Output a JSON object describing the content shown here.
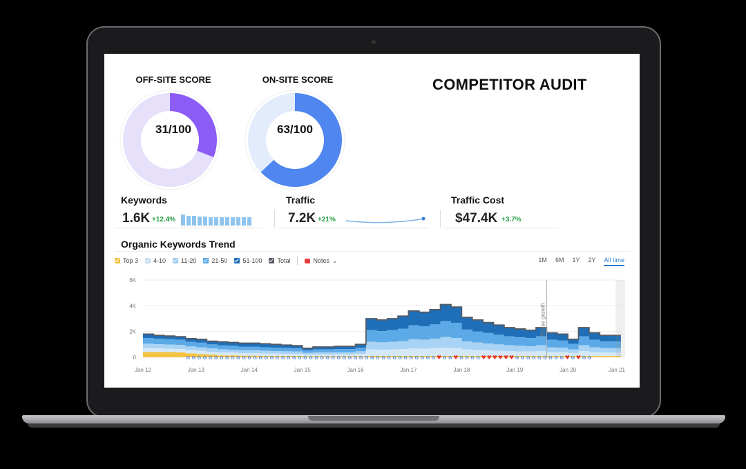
{
  "colors": {
    "offsite_fill": "#8b5cf6",
    "offsite_track": "#e6e0fa",
    "onsite_fill": "#4f86ef",
    "onsite_track": "#e3ecfc",
    "top3": "#f5c342",
    "pos_4_10": "#d4e8f8",
    "pos_11_20": "#a9d3f4",
    "pos_21_50": "#5ba9e6",
    "pos_51_100": "#1f6fb8",
    "total": "#555a64",
    "positive_change": "#1a9a3a"
  },
  "scores": {
    "offsite": {
      "title": "OFF-SITE SCORE",
      "value": "31/100",
      "fraction": 0.31
    },
    "onsite": {
      "title": "ON-SITE SCORE",
      "value": "63/100",
      "fraction": 0.63
    }
  },
  "heading": "COMPETITOR AUDIT",
  "metrics": {
    "keywords": {
      "label": "Keywords",
      "value": "1.6K",
      "change": "+12.4%"
    },
    "traffic": {
      "label": "Traffic",
      "value": "7.2K",
      "change": "+21%"
    },
    "traffic_cost": {
      "label": "Traffic Cost",
      "value": "$47.4K",
      "change": "+3.7%"
    }
  },
  "trend": {
    "title": "Organic Keywords Trend",
    "legend": [
      "Top 3",
      "4-10",
      "11-20",
      "21-50",
      "51-100",
      "Total"
    ],
    "notes_label": "Notes",
    "ranges": [
      "1M",
      "6M",
      "1Y",
      "2Y",
      "All time"
    ],
    "active_range": "All time",
    "annotation": "Phase growth"
  },
  "chart_data": {
    "type": "area",
    "title": "Organic Keywords Trend",
    "y_ticks": [
      "6K",
      "4K",
      "2K",
      "0"
    ],
    "ylim": [
      0,
      6000
    ],
    "x_tick_labels": [
      "Jan 12",
      "Jan 13",
      "Jan 14",
      "Jan 15",
      "Jan 16",
      "Jan 17",
      "Jan 18",
      "Jan 19",
      "Jan 20",
      "Jan 21"
    ],
    "x": [
      12.0,
      12.2,
      12.4,
      12.6,
      12.8,
      13.0,
      13.2,
      13.4,
      13.6,
      13.8,
      14.0,
      14.2,
      14.4,
      14.6,
      14.8,
      15.0,
      15.2,
      15.4,
      15.6,
      15.8,
      16.0,
      16.2,
      16.4,
      16.6,
      16.8,
      17.0,
      17.2,
      17.4,
      17.6,
      17.8,
      18.0,
      18.2,
      18.4,
      18.6,
      18.8,
      19.0,
      19.2,
      19.4,
      19.6,
      19.8,
      20.0,
      20.2,
      20.4,
      20.6,
      20.8,
      21.0
    ],
    "total": [
      1800,
      1700,
      1650,
      1600,
      1450,
      1400,
      1250,
      1200,
      1150,
      1100,
      1100,
      1050,
      1000,
      950,
      900,
      700,
      800,
      800,
      850,
      850,
      1000,
      3000,
      2900,
      3000,
      3200,
      3600,
      3500,
      3700,
      4100,
      3900,
      3100,
      2900,
      2700,
      2500,
      2300,
      2200,
      2100,
      2300,
      1900,
      1800,
      1400,
      2300,
      1900,
      1700,
      1700,
      1700
    ],
    "series": [
      {
        "name": "Top 3",
        "values": [
          400,
          400,
          400,
          380,
          300,
          250,
          200,
          150,
          150,
          120,
          120,
          100,
          100,
          100,
          100,
          80,
          80,
          80,
          80,
          80,
          80,
          100,
          100,
          100,
          100,
          100,
          100,
          100,
          100,
          100,
          100,
          100,
          100,
          100,
          100,
          100,
          100,
          100,
          100,
          100,
          100,
          100,
          100,
          100,
          100,
          100
        ]
      },
      {
        "name": "4-10",
        "values": [
          300,
          280,
          270,
          260,
          250,
          250,
          230,
          220,
          210,
          200,
          200,
          190,
          180,
          170,
          160,
          120,
          140,
          140,
          150,
          150,
          180,
          500,
          480,
          500,
          520,
          580,
          560,
          600,
          650,
          620,
          500,
          460,
          430,
          400,
          370,
          350,
          340,
          370,
          300,
          290,
          230,
          370,
          300,
          270,
          270,
          270
        ]
      },
      {
        "name": "11-20",
        "values": [
          350,
          330,
          320,
          310,
          290,
          280,
          250,
          240,
          230,
          220,
          220,
          210,
          200,
          190,
          180,
          140,
          160,
          160,
          170,
          170,
          200,
          600,
          580,
          600,
          640,
          720,
          700,
          740,
          820,
          780,
          620,
          580,
          540,
          500,
          460,
          440,
          420,
          460,
          380,
          360,
          280,
          460,
          380,
          340,
          340,
          340
        ]
      },
      {
        "name": "21-50",
        "values": [
          450,
          420,
          410,
          400,
          360,
          350,
          320,
          310,
          300,
          290,
          290,
          280,
          270,
          250,
          240,
          190,
          220,
          220,
          230,
          230,
          270,
          900,
          870,
          900,
          960,
          1080,
          1050,
          1110,
          1230,
          1170,
          930,
          870,
          810,
          750,
          690,
          660,
          630,
          690,
          570,
          540,
          420,
          690,
          570,
          510,
          510,
          510
        ]
      },
      {
        "name": "51-100",
        "values": [
          300,
          270,
          250,
          250,
          250,
          270,
          250,
          280,
          260,
          270,
          270,
          270,
          250,
          240,
          220,
          170,
          200,
          200,
          220,
          220,
          270,
          900,
          870,
          900,
          980,
          1120,
          1090,
          1150,
          1300,
          1230,
          950,
          890,
          820,
          750,
          680,
          650,
          610,
          680,
          550,
          510,
          370,
          680,
          550,
          480,
          480,
          480
        ]
      }
    ]
  }
}
